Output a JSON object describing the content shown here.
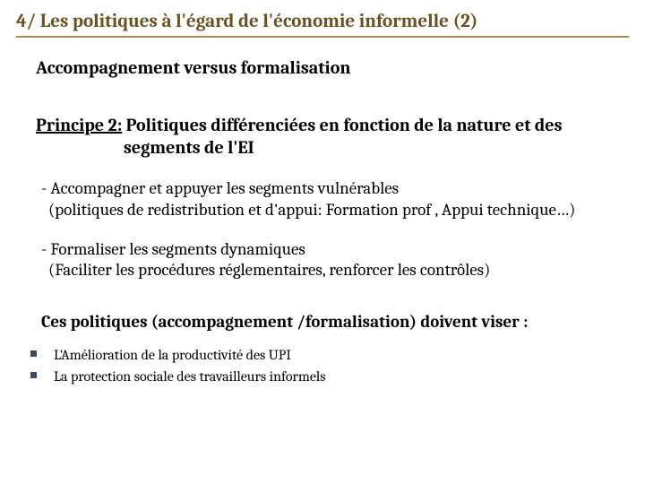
{
  "colors": {
    "title_text": "#6b5020",
    "title_border": "#a88b4a",
    "bullet_square": "#3f4a58",
    "body_text": "#000000",
    "background": "#ffffff"
  },
  "title": "4/ Les politiques à l'égard de l'économie informelle (2)",
  "subtitle": "Accompagnement versus formalisation",
  "principle": {
    "label": "Principe 2:",
    "text_line1": " Politiques différenciées en fonction de la nature et des",
    "text_line2": "segments de l'EI"
  },
  "points": [
    {
      "main": "- Accompagner et appuyer les segments vulnérables",
      "paren": "(politiques de redistribution et d'appui: Formation prof , Appui technique…)"
    },
    {
      "main": "- Formaliser les segments dynamiques",
      "paren": "(Faciliter les procédures réglementaires, renforcer les contrôles)"
    }
  ],
  "conclusion": "Ces politiques (accompagnement /formalisation) doivent viser :",
  "bullets": [
    "L'Amélioration de la productivité des UPI",
    "La protection sociale des travailleurs informels"
  ],
  "typography": {
    "title_fontsize": 21,
    "subtitle_fontsize": 20,
    "principle_fontsize": 20,
    "point_fontsize": 19,
    "conclusion_fontsize": 19,
    "bullet_fontsize": 16
  }
}
